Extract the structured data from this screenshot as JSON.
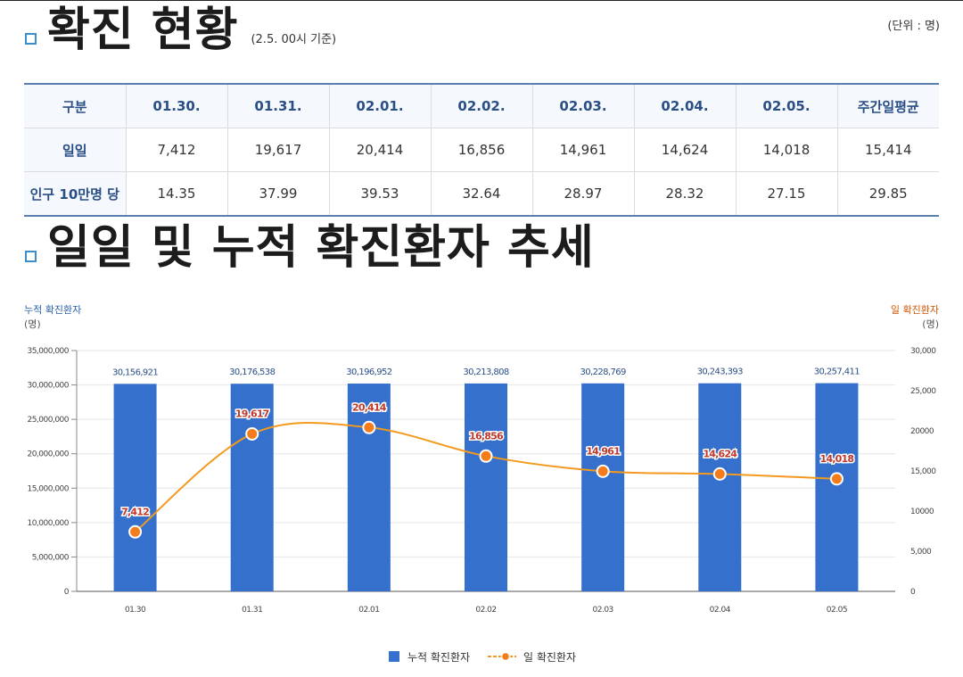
{
  "header": {
    "title": "확진 현황",
    "date_note": "(2.5. 00시 기준)",
    "unit": "(단위 : 명)"
  },
  "table": {
    "columns": [
      "구분",
      "01.30.",
      "01.31.",
      "02.01.",
      "02.02.",
      "02.03.",
      "02.04.",
      "02.05.",
      "주간일평균"
    ],
    "rows": [
      {
        "label": "일일",
        "values": [
          "7,412",
          "19,617",
          "20,414",
          "16,856",
          "14,961",
          "14,624",
          "14,018",
          "15,414"
        ]
      },
      {
        "label": "인구 10만명 당",
        "values": [
          "14.35",
          "37.99",
          "39.53",
          "32.64",
          "28.97",
          "28.32",
          "27.15",
          "29.85"
        ]
      }
    ]
  },
  "section2": {
    "title": "일일 및 누적 확진환자 추세"
  },
  "chart_data": {
    "type": "bar+line",
    "categories": [
      "01.30",
      "01.31",
      "02.01",
      "02.02",
      "02.03",
      "02.04",
      "02.05"
    ],
    "series": [
      {
        "name": "누적 확진환자",
        "type": "bar",
        "axis": "left",
        "values": [
          30156921,
          30176538,
          30196952,
          30213808,
          30228769,
          30243393,
          30257411
        ],
        "labels": [
          "30,156,921",
          "30,176,538",
          "30,196,952",
          "30,213,808",
          "30,228,769",
          "30,243,393",
          "30,257,411"
        ],
        "color": "#3570cc"
      },
      {
        "name": "일 확진환자",
        "type": "line",
        "axis": "right",
        "values": [
          7412,
          19617,
          20414,
          16856,
          14961,
          14624,
          14018
        ],
        "labels": [
          "7,412",
          "19,617",
          "20,414",
          "16,856",
          "14,961",
          "14,624",
          "14,018"
        ],
        "color": "#f39a1e"
      }
    ],
    "left_axis": {
      "label": "누적 확진환자",
      "unit": "(명)",
      "min": 0,
      "max": 35000000,
      "ticks": [
        "0",
        "5,000,000",
        "10,000,000",
        "15,000,000",
        "20,000,000",
        "25,000,000",
        "30,000,000",
        "35,000,000"
      ]
    },
    "right_axis": {
      "label": "일 확진환자",
      "unit": "(명)",
      "min": 0,
      "max": 30000,
      "ticks": [
        "0",
        "5,000",
        "10000",
        "15,000",
        "20000",
        "25,000",
        "30,000"
      ]
    },
    "legend": {
      "position": "bottom-center",
      "items": [
        "누적 확진환자",
        "일 확진환자"
      ]
    },
    "colors": {
      "bar": "#3570cc",
      "line": "#f39a1e",
      "point": "#f47c1b",
      "label": "#c0392b",
      "bar_label": "#2a4f86",
      "left_axis_title": "#2a5fa8",
      "right_axis_title": "#d35400"
    }
  }
}
